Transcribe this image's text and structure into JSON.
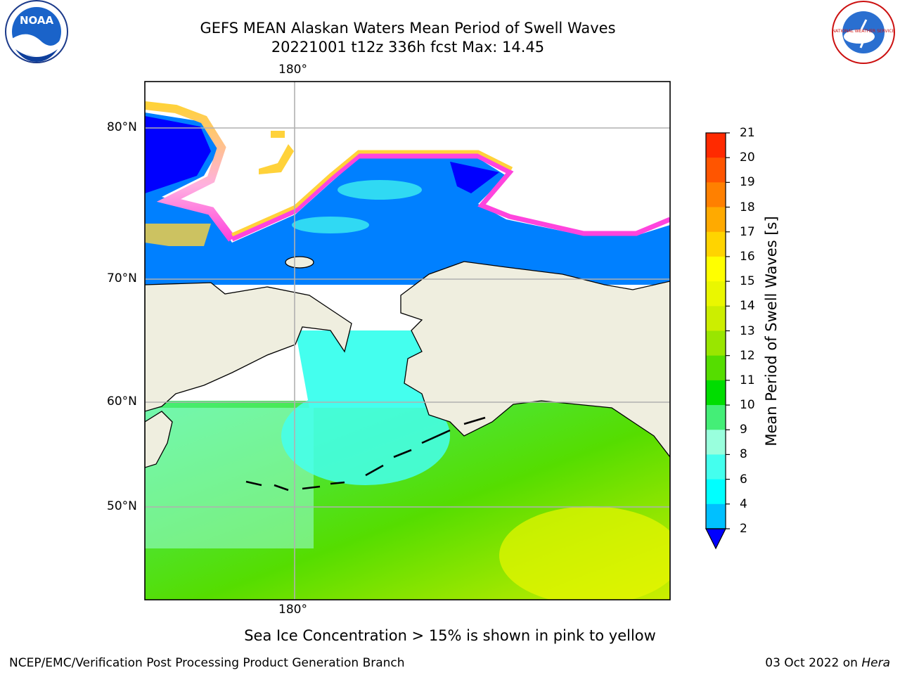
{
  "header": {
    "title_line1": "GEFS MEAN Alaskan Waters Mean Period of Swell Waves",
    "title_line2": "20221001 t12z 336h fcst   Max: 14.45",
    "noara_logo_text": "NOAA",
    "nws_logo_text": "NATIONAL WEATHER SERVICE"
  },
  "map": {
    "lon_label_top": "180°",
    "lon_label_bottom": "180°",
    "lat_labels": [
      "80°N",
      "70°N",
      "60°N",
      "50°N"
    ],
    "colors": {
      "land": "#efeedf",
      "ocean_low": "#0080ff",
      "ocean_min": "#0000ff",
      "ice_pink": "#ff44dd",
      "ice_yellow": "#ffd23a",
      "gridline": "#b0b0b0"
    }
  },
  "colorbar": {
    "label": "Mean Period of Swell Waves [s]",
    "ticks": [
      "21",
      "20",
      "19",
      "18",
      "17",
      "16",
      "15",
      "14",
      "13",
      "12",
      "11",
      "10",
      "9",
      "8",
      "6",
      "4",
      "2"
    ],
    "colors": [
      "#ff0000",
      "#ff2a00",
      "#ff5500",
      "#ff8000",
      "#ffaa00",
      "#ffd400",
      "#ffff00",
      "#eaf700",
      "#ccee00",
      "#99e600",
      "#55dd00",
      "#00dd00",
      "#44ee77",
      "#99ffdd",
      "#44ffee",
      "#00ffff",
      "#00c0ff",
      "#0080ff"
    ],
    "under_color": "#0000ff"
  },
  "subtitle": "Sea Ice Concentration > 15% is shown in pink to yellow",
  "footer": {
    "left": "NCEP/EMC/Verification Post Processing Product Generation Branch",
    "right_date": "03 Oct 2022 on ",
    "right_machine": "Hera"
  }
}
